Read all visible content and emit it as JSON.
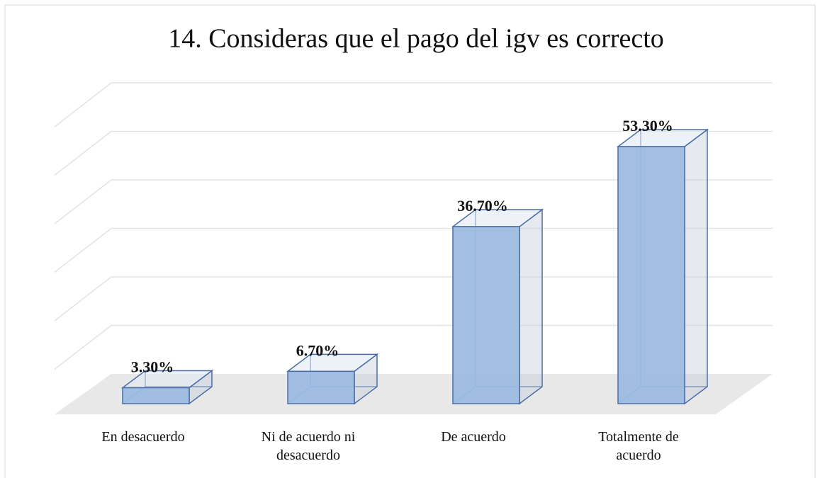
{
  "chart_data": {
    "type": "bar3d",
    "title": "14. Consideras que el pago del igv es correcto",
    "categories": [
      "En desacuerdo",
      "Ni de acuerdo ni desacuerdo",
      "De acuerdo",
      "Totalmente de acuerdo"
    ],
    "values": [
      3.3,
      6.7,
      36.7,
      53.3
    ],
    "value_labels": [
      "3.30%",
      "6.70%",
      "36.70%",
      "53.30%"
    ],
    "color": "#9dbbe1",
    "ylim": [
      0,
      60
    ],
    "yticks": [
      0,
      10,
      20,
      30,
      40,
      50,
      60
    ],
    "grid": true
  }
}
